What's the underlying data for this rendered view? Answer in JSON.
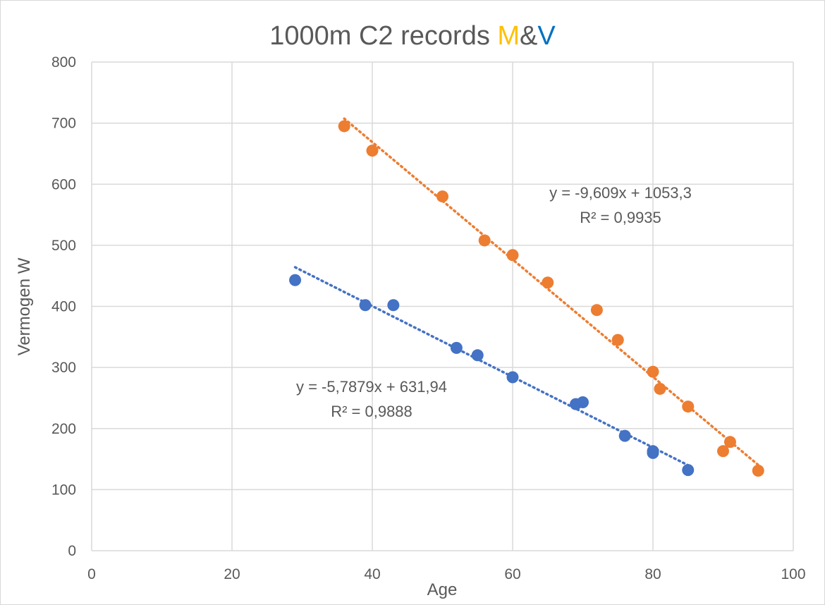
{
  "chart_data": {
    "type": "scatter",
    "title": {
      "prefix": "1000m C2 records ",
      "m": "M",
      "amp": "&",
      "v": "V"
    },
    "xlabel": "Age",
    "ylabel": "Vermogen W",
    "xlim": [
      0,
      100
    ],
    "ylim": [
      0,
      800
    ],
    "xticks": [
      0,
      20,
      40,
      60,
      80,
      100
    ],
    "yticks": [
      0,
      100,
      200,
      300,
      400,
      500,
      600,
      700,
      800
    ],
    "grid": true,
    "series": [
      {
        "name": "M",
        "color": "#ed7d31",
        "points": [
          [
            36,
            695
          ],
          [
            40,
            655
          ],
          [
            50,
            580
          ],
          [
            56,
            508
          ],
          [
            60,
            484
          ],
          [
            65,
            439
          ],
          [
            72,
            394
          ],
          [
            75,
            345
          ],
          [
            80,
            293
          ],
          [
            81,
            265
          ],
          [
            85,
            236
          ],
          [
            90,
            163
          ],
          [
            91,
            178
          ],
          [
            95,
            131
          ]
        ],
        "trendline": {
          "slope": -9.609,
          "intercept": 1053.3,
          "x_range": [
            36,
            95
          ],
          "equation": "y = -9,609x + 1053,3",
          "r2": "R² = 0,9935"
        }
      },
      {
        "name": "V",
        "color": "#4472c4",
        "points": [
          [
            29,
            443
          ],
          [
            39,
            402
          ],
          [
            43,
            402
          ],
          [
            52,
            332
          ],
          [
            55,
            320
          ],
          [
            60,
            284
          ],
          [
            69,
            240
          ],
          [
            70,
            243
          ],
          [
            76,
            188
          ],
          [
            80,
            163
          ],
          [
            80,
            160
          ],
          [
            85,
            132
          ]
        ],
        "trendline": {
          "slope": -5.7879,
          "intercept": 631.94,
          "x_range": [
            29,
            85
          ],
          "equation": "y = -5,7879x + 631,94",
          "r2": "R² = 0,9888"
        }
      }
    ]
  }
}
